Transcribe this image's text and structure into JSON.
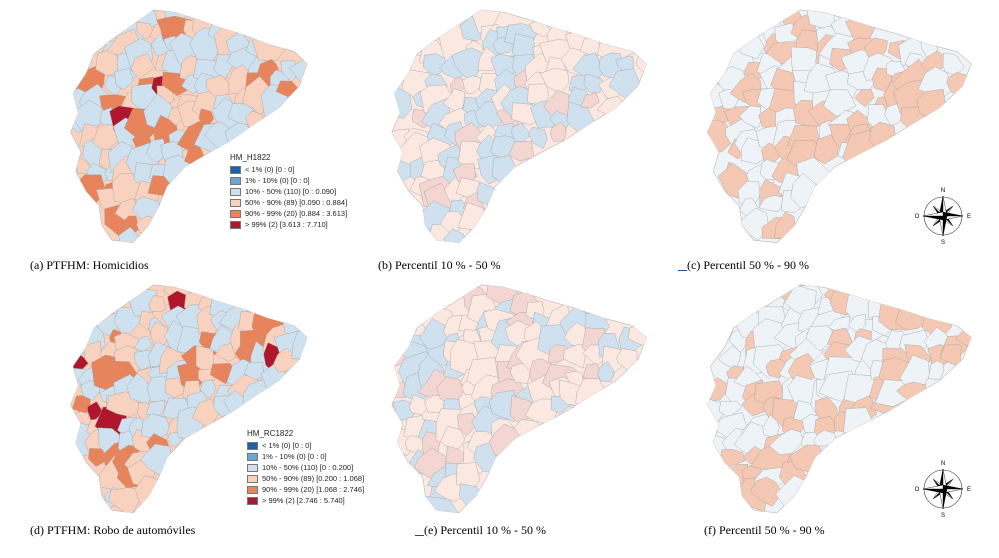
{
  "panels": [
    {
      "caption": "(a) PTFHM: Homicidios",
      "style": "full"
    },
    {
      "caption": "(b) Percentil 10 % - 50 %",
      "style": "b"
    },
    {
      "caption": "(c) Percentil 50 % - 90 %",
      "style": "c"
    },
    {
      "caption": "(d) PTFHM: Robo de automóviles",
      "style": "full"
    },
    {
      "caption": "(e) Percentil 10 % - 50 %",
      "style": "b"
    },
    {
      "caption": "(f) Percentil 50 % - 90 %",
      "style": "c"
    }
  ],
  "legend_top": {
    "title": "HM_H1822",
    "items": [
      {
        "label": "< 1% (0)  [0 : 0]",
        "color": "#1f5fa8"
      },
      {
        "label": "1% - 10% (0)  [0 : 0]",
        "color": "#6aa6d1"
      },
      {
        "label": "10% - 50% (110)  [0 : 0.090]",
        "color": "#cfe1ee"
      },
      {
        "label": "50% - 90% (89)  [0.090 : 0.884]",
        "color": "#f8d2bf"
      },
      {
        "label": "90% - 99% (20)  [0.884 : 3.613]",
        "color": "#e8845c"
      },
      {
        "label": "> 99% (2)  [3.613 : 7.710]",
        "color": "#b0172c"
      }
    ]
  },
  "legend_bottom": {
    "title": "HM_RC1822",
    "items": [
      {
        "label": "< 1% (0)  [0 : 0]",
        "color": "#1f5fa8"
      },
      {
        "label": "1% - 10% (0)  [0 : 0]",
        "color": "#6aa6d1"
      },
      {
        "label": "10% - 50% (110)  [0 : 0.200]",
        "color": "#cfe1ee"
      },
      {
        "label": "50% - 90% (89)  [0.200 : 1.068]",
        "color": "#f8d2bf"
      },
      {
        "label": "90% - 99% (20)  [1.068 : 2.746]",
        "color": "#e8845c"
      },
      {
        "label": "> 99% (2)  [2.746 : 5.740]",
        "color": "#b0172c"
      }
    ]
  },
  "compass": {
    "n": "N",
    "s": "S",
    "e": "E",
    "w": "O"
  }
}
